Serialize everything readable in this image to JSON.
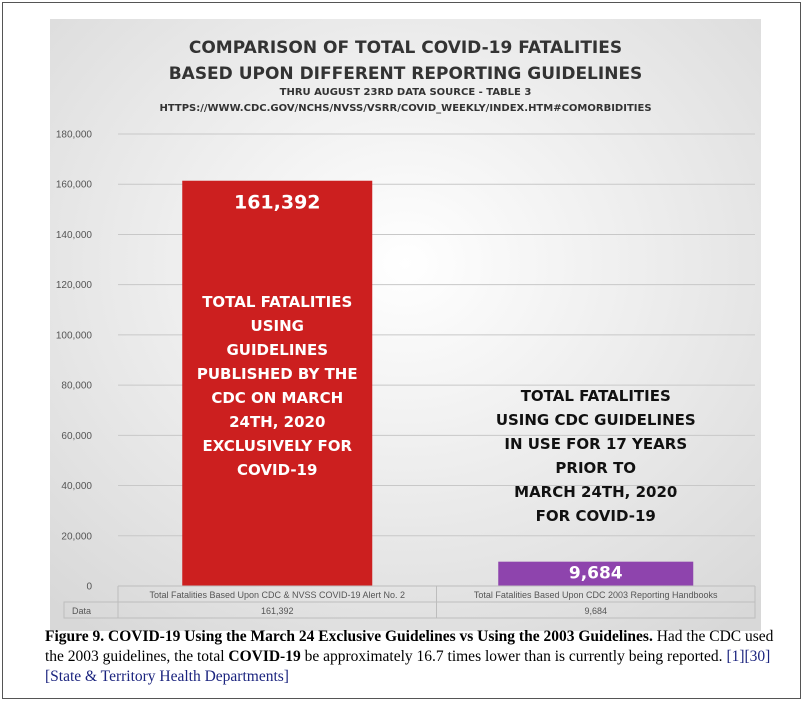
{
  "chart_data": {
    "type": "bar",
    "title_lines": [
      "COMPARISON OF TOTAL COVID-19 FATALITIES",
      "BASED UPON DIFFERENT REPORTING GUIDELINES"
    ],
    "subtitle_lines": [
      "THRU AUGUST 23RD DATA SOURCE - TABLE 3",
      "HTTPS://WWW.CDC.GOV/NCHS/NVSS/VSRR/COVID_WEEKLY/INDEX.HTM#COMORBIDITIES"
    ],
    "categories": [
      "Total Fatalities Based Upon CDC & NVSS COVID-19 Alert No. 2",
      "Total Fatalities Based Upon CDC 2003 Reporting Handbooks"
    ],
    "values": [
      161392,
      9684
    ],
    "value_labels": [
      "161,392",
      "9,684"
    ],
    "bar_colors": [
      "#cc1f1f",
      "#8e44ad"
    ],
    "ylim": [
      0,
      180000
    ],
    "yticks": [
      "0",
      "20,000",
      "40,000",
      "60,000",
      "80,000",
      "100,000",
      "120,000",
      "140,000",
      "160,000",
      "180,000"
    ],
    "grid": true,
    "table_row_label": "Data",
    "table_values": [
      "161,392",
      "9,684"
    ],
    "annotations": [
      [
        "TOTAL FATALITIES",
        "USING",
        "GUIDELINES",
        "PUBLISHED BY THE",
        "CDC ON MARCH",
        "24TH, 2020",
        "EXCLUSIVELY FOR",
        "COVID-19"
      ],
      [
        "TOTAL FATALITIES",
        "USING CDC GUIDELINES",
        "IN USE FOR 17 YEARS",
        "PRIOR TO",
        "MARCH 24TH, 2020",
        "FOR COVID-19"
      ]
    ]
  },
  "caption": {
    "label": "Figure 9.",
    "bold_title": "COVID-19 Using the March 24 Exclusive Guidelines vs Using the 2003 Guidelines.",
    "text_1": "Had the CDC used the 2003 guidelines, the total",
    "bold_term": "COVID-19",
    "text_2": "be approximately 16.7 times lower than is currently being reported.",
    "refs": "[1][30][State & Territory Health Departments]"
  }
}
